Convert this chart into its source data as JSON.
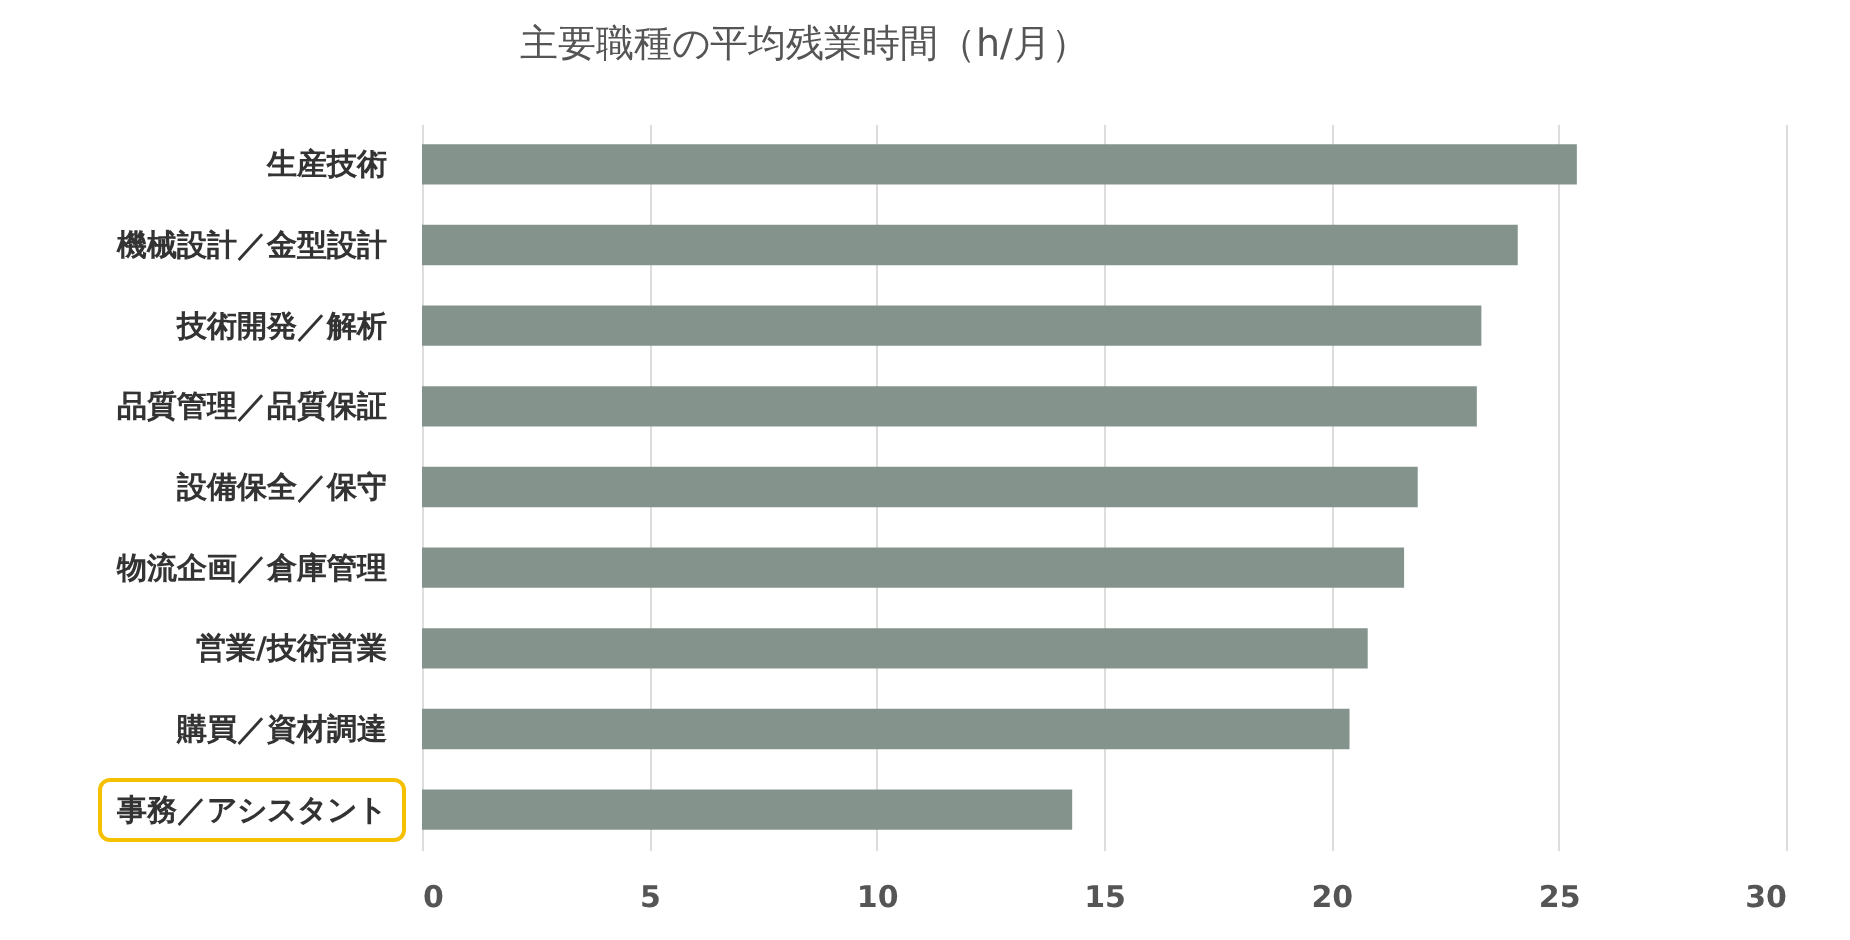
{
  "chart_data": {
    "type": "bar",
    "orientation": "horizontal",
    "title": "主要職種の平均残業時間（h/月）",
    "categories": [
      "生産技術",
      "機械設計／金型設計",
      "技術開発／解析",
      "品質管理／品質保証",
      "設備保全／保守",
      "物流企画／倉庫管理",
      "営業/技術営業",
      "購買／資材調達",
      "事務／アシスタント"
    ],
    "values": [
      25.4,
      24.1,
      23.3,
      23.2,
      21.9,
      21.6,
      20.8,
      20.4,
      14.3
    ],
    "color": "#85938d",
    "xlim": [
      0,
      30
    ],
    "xticks": [
      0,
      5,
      10,
      15,
      20,
      25,
      30
    ],
    "grid": "x"
  }
}
